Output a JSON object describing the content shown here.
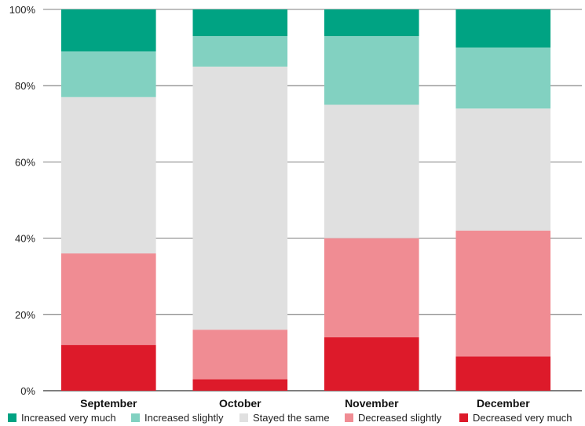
{
  "chart_data": {
    "type": "bar",
    "stacked": true,
    "categories": [
      "September",
      "October",
      "November",
      "December"
    ],
    "ylim": [
      0,
      100
    ],
    "yticks": [
      0,
      20,
      40,
      60,
      80,
      100
    ],
    "ytick_labels": [
      "0%",
      "20%",
      "40%",
      "60%",
      "80%",
      "100%"
    ],
    "grid": true,
    "legend_position": "bottom",
    "series": [
      {
        "name": "Decreased very much",
        "color": "#dd1a2a",
        "values": [
          12,
          3,
          14,
          9
        ]
      },
      {
        "name": "Decreased slightly",
        "color": "#f08c93",
        "values": [
          24,
          13,
          26,
          33
        ]
      },
      {
        "name": "Stayed the same",
        "color": "#e0e0e0",
        "values": [
          41,
          69,
          35,
          32
        ]
      },
      {
        "name": "Increased slightly",
        "color": "#82d1c1",
        "values": [
          12,
          8,
          18,
          16
        ]
      },
      {
        "name": "Increased very much",
        "color": "#00a383",
        "values": [
          11,
          7,
          7,
          10
        ]
      }
    ],
    "legend_order": [
      "Increased very much",
      "Increased slightly",
      "Stayed the same",
      "Decreased slightly",
      "Decreased very much"
    ]
  }
}
